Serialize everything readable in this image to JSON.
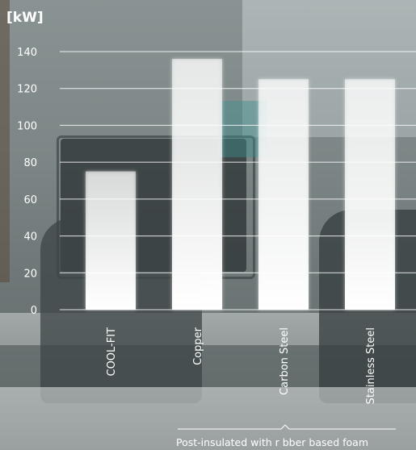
{
  "chart_data": {
    "type": "bar",
    "unit_label": "[kW]",
    "categories": [
      "COOL-FIT",
      "Copper",
      "Carbon Steel",
      "Stainless Steel"
    ],
    "values": [
      75,
      136,
      125,
      125
    ],
    "ylim": [
      0,
      140
    ],
    "yticks": [
      "0",
      "20",
      "40",
      "60",
      "80",
      "100",
      "120",
      "140"
    ],
    "grid": true,
    "group_label": "Post-insulated with r bber based foam"
  },
  "colors": {
    "bar": "#ffffff",
    "grid": "#ffffff",
    "text": "#ffffff"
  }
}
